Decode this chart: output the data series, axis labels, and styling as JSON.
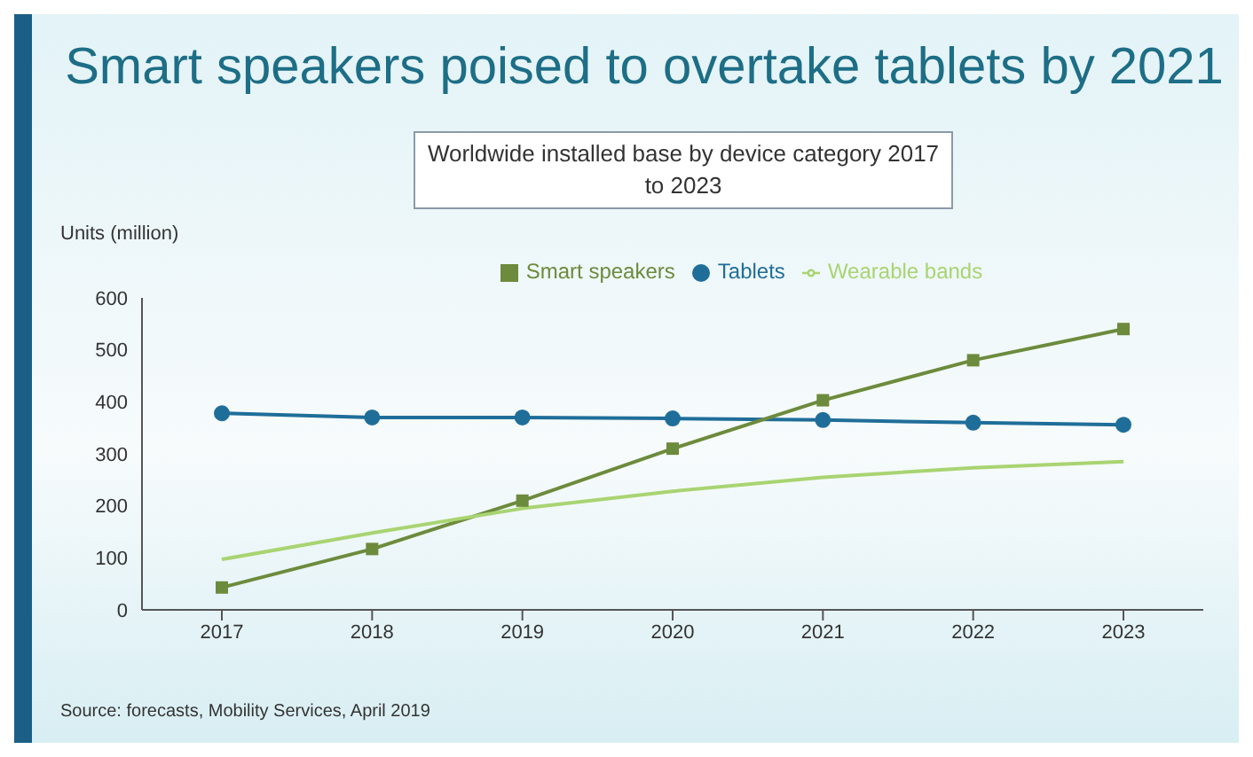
{
  "chart_data": {
    "type": "line",
    "title": "Smart speakers poised to overtake tablets by 2021",
    "subtitle": "Worldwide installed base by device category 2017 to 2023",
    "ylabel": "Units (million)",
    "categories": [
      "2017",
      "2018",
      "2019",
      "2020",
      "2021",
      "2022",
      "2023"
    ],
    "series": [
      {
        "name": "Tablets",
        "color": "#1f6e99",
        "marker": "circle",
        "values": [
          378,
          370,
          370,
          368,
          365,
          360,
          356
        ]
      },
      {
        "name": "Smart speakers",
        "color": "#6d8b3c",
        "marker": "square",
        "values": [
          43,
          117,
          210,
          310,
          403,
          480,
          540
        ]
      },
      {
        "name": "Wearable bands",
        "color": "#a9d472",
        "marker": "none",
        "values": [
          97,
          148,
          195,
          228,
          255,
          273,
          285
        ]
      }
    ],
    "ylim": [
      0,
      600
    ],
    "yticks": [
      0,
      100,
      200,
      300,
      400,
      500,
      600
    ],
    "legend": "top",
    "annotations": [
      "Source: forecasts, Mobility Services, April 2019"
    ]
  }
}
